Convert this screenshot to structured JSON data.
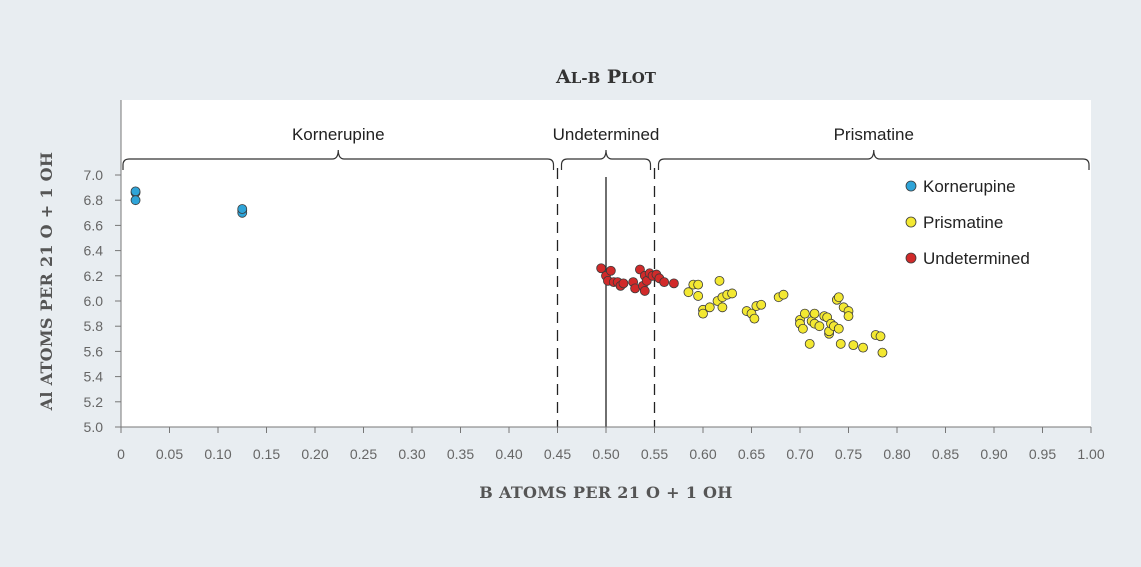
{
  "chart_data": {
    "type": "scatter",
    "title": "Al-B Plot",
    "xlabel": "B ATOMS PER 21 O + 1 OH",
    "ylabel": "Al ATOMS PER 21 O + 1 OH",
    "xlim": [
      0,
      1.0
    ],
    "ylim": [
      5.0,
      7.0
    ],
    "x_ticks": [
      "0",
      "0.05",
      "0.10",
      "0.15",
      "0.20",
      "0.25",
      "0.30",
      "0.35",
      "0.40",
      "0.45",
      "0.50",
      "0.55",
      "0.60",
      "0.65",
      "0.70",
      "0.75",
      "0.80",
      "0.85",
      "0.90",
      "0.95",
      "1.00"
    ],
    "y_ticks": [
      "5.0",
      "5.2",
      "5.4",
      "5.6",
      "5.8",
      "6.0",
      "6.2",
      "6.4",
      "6.6",
      "6.8",
      "7.0"
    ],
    "legend_position": "top-right",
    "regions": [
      {
        "name": "Kornerupine",
        "x_range": [
          0,
          0.45
        ]
      },
      {
        "name": "Undetermined",
        "x_range": [
          0.45,
          0.55
        ]
      },
      {
        "name": "Prismatine",
        "x_range": [
          0.55,
          1.0
        ]
      }
    ],
    "dashed_lines_x": [
      0.45,
      0.55
    ],
    "solid_line_x": 0.5,
    "series": [
      {
        "name": "Kornerupine",
        "color": "#2fa4d8",
        "points": [
          [
            0.015,
            6.86
          ],
          [
            0.015,
            6.87
          ],
          [
            0.015,
            6.8
          ],
          [
            0.125,
            6.72
          ],
          [
            0.125,
            6.7
          ],
          [
            0.125,
            6.73
          ]
        ]
      },
      {
        "name": "Prismatine",
        "color": "#f3e832",
        "points": [
          [
            0.585,
            6.07
          ],
          [
            0.59,
            6.13
          ],
          [
            0.595,
            6.13
          ],
          [
            0.595,
            6.04
          ],
          [
            0.6,
            5.93
          ],
          [
            0.6,
            5.9
          ],
          [
            0.607,
            5.95
          ],
          [
            0.615,
            6.0
          ],
          [
            0.617,
            6.16
          ],
          [
            0.62,
            6.03
          ],
          [
            0.62,
            5.95
          ],
          [
            0.625,
            6.05
          ],
          [
            0.63,
            6.06
          ],
          [
            0.645,
            5.92
          ],
          [
            0.65,
            5.9
          ],
          [
            0.653,
            5.86
          ],
          [
            0.655,
            5.96
          ],
          [
            0.66,
            5.97
          ],
          [
            0.678,
            6.03
          ],
          [
            0.683,
            6.05
          ],
          [
            0.7,
            5.85
          ],
          [
            0.7,
            5.82
          ],
          [
            0.703,
            5.78
          ],
          [
            0.705,
            5.9
          ],
          [
            0.71,
            5.66
          ],
          [
            0.712,
            5.84
          ],
          [
            0.715,
            5.9
          ],
          [
            0.715,
            5.82
          ],
          [
            0.72,
            5.8
          ],
          [
            0.725,
            5.88
          ],
          [
            0.728,
            5.87
          ],
          [
            0.73,
            5.74
          ],
          [
            0.73,
            5.76
          ],
          [
            0.732,
            5.82
          ],
          [
            0.735,
            5.8
          ],
          [
            0.738,
            6.01
          ],
          [
            0.74,
            6.03
          ],
          [
            0.74,
            5.78
          ],
          [
            0.742,
            5.66
          ],
          [
            0.745,
            5.95
          ],
          [
            0.75,
            5.92
          ],
          [
            0.75,
            5.88
          ],
          [
            0.755,
            5.65
          ],
          [
            0.765,
            5.63
          ],
          [
            0.778,
            5.73
          ],
          [
            0.783,
            5.72
          ],
          [
            0.785,
            5.59
          ]
        ]
      },
      {
        "name": "Undetermined",
        "color": "#d12a2a",
        "points": [
          [
            0.495,
            6.26
          ],
          [
            0.5,
            6.2
          ],
          [
            0.502,
            6.16
          ],
          [
            0.505,
            6.24
          ],
          [
            0.508,
            6.15
          ],
          [
            0.512,
            6.15
          ],
          [
            0.515,
            6.12
          ],
          [
            0.518,
            6.14
          ],
          [
            0.528,
            6.15
          ],
          [
            0.53,
            6.1
          ],
          [
            0.535,
            6.25
          ],
          [
            0.538,
            6.12
          ],
          [
            0.54,
            6.2
          ],
          [
            0.54,
            6.08
          ],
          [
            0.542,
            6.16
          ],
          [
            0.545,
            6.22
          ],
          [
            0.548,
            6.2
          ],
          [
            0.552,
            6.21
          ],
          [
            0.555,
            6.18
          ],
          [
            0.56,
            6.15
          ],
          [
            0.57,
            6.14
          ]
        ]
      }
    ]
  }
}
